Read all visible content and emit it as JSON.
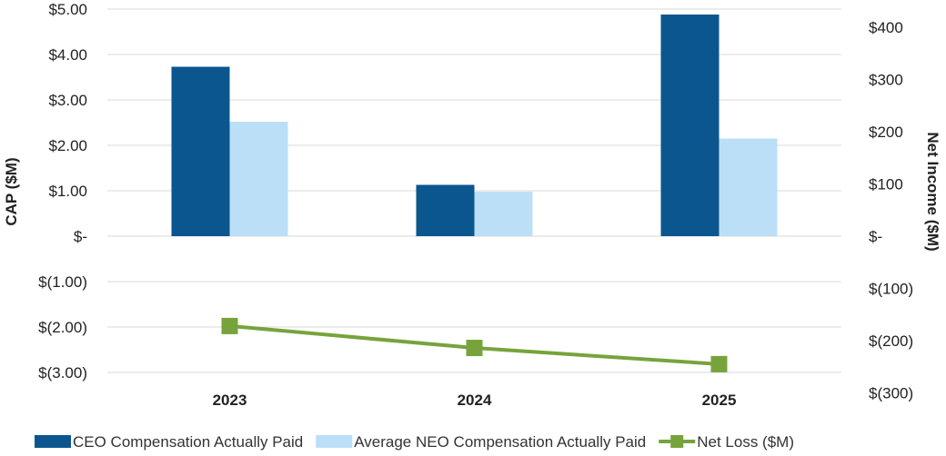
{
  "chart_data": {
    "type": "bar",
    "categories": [
      "2023",
      "2024",
      "2025"
    ],
    "series": [
      {
        "name": "CEO Compensation Actually Paid",
        "type": "bar",
        "axis": "left",
        "color": "#0b568f",
        "values": [
          3.73,
          1.13,
          4.88
        ]
      },
      {
        "name": "Average NEO Compensation Actually Paid",
        "type": "bar",
        "axis": "left",
        "color": "#bcdff8",
        "values": [
          2.52,
          0.98,
          2.15
        ]
      },
      {
        "name": "Net Loss ($M)",
        "type": "line",
        "axis": "right",
        "color": "#77a33c",
        "marker": "square",
        "values": [
          -172,
          -214,
          -245
        ]
      }
    ],
    "ylabel": "CAP ($M)",
    "y2label": "Net Income ($M)",
    "ylim": [
      -3,
      5
    ],
    "y2lim": [
      -300,
      400
    ],
    "yticks": [
      5,
      4,
      3,
      2,
      1,
      0,
      -1,
      -2,
      -3
    ],
    "yticklabels": [
      "$5.00",
      "$4.00",
      "$3.00",
      "$2.00",
      "$1.00",
      "$-",
      "$(1.00)",
      "$(2.00)",
      "$(3.00)"
    ],
    "y2ticks": [
      400,
      300,
      200,
      100,
      0,
      -100,
      -200,
      -300
    ],
    "y2ticklabels": [
      "$400",
      "$300",
      "$200",
      "$100",
      "$-",
      "$(100)",
      "$(200)",
      "$(300)"
    ],
    "grid": true,
    "legend": "bottom"
  }
}
